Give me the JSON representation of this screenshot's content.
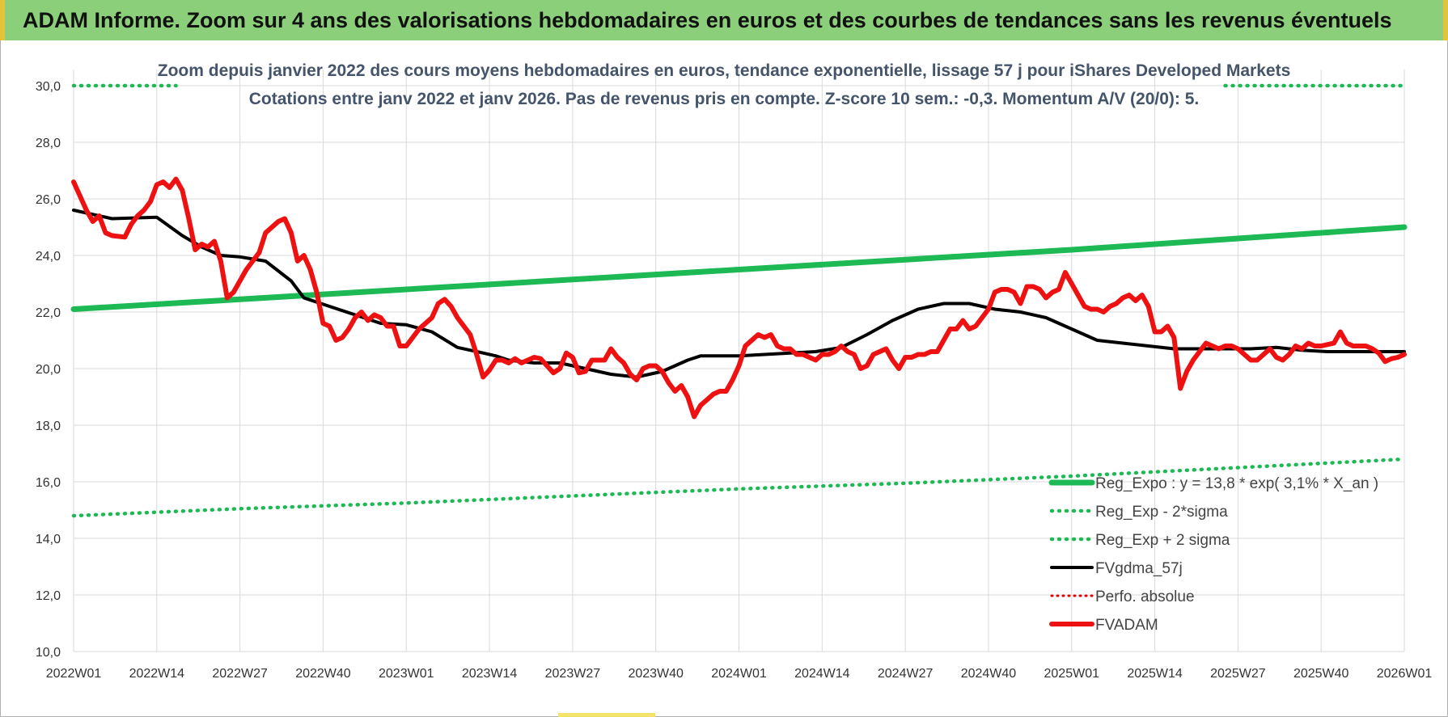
{
  "header": {
    "title": "ADAM Informe. Zoom sur 4 ans des valorisations hebdomadaires en euros et des courbes de tendances sans les revenus éventuels"
  },
  "chart_data": {
    "type": "line",
    "title": "Zoom depuis janvier 2022 des cours moyens hebdomadaires en euros, tendance exponentielle, lissage 57 j pour iShares Developed Markets",
    "subtitle": "Cotations entre janv 2022 et janv 2026. Pas de revenus pris en compte. Z-score 10 sem.: -0,3. Momentum A/V (20/0): 5.",
    "xlabel": "",
    "ylabel": "",
    "ylim": [
      10,
      30
    ],
    "y_ticks": [
      "30,0",
      "28,0",
      "26,0",
      "24,0",
      "22,0",
      "20,0",
      "18,0",
      "16,0",
      "14,0",
      "12,0",
      "10,0"
    ],
    "x_ticks": [
      "2022W01",
      "2022W14",
      "2022W27",
      "2022W40",
      "2023W01",
      "2023W14",
      "2023W27",
      "2023W40",
      "2024W01",
      "2024W14",
      "2024W27",
      "2024W40",
      "2025W01",
      "2025W14",
      "2025W27",
      "2025W40",
      "2026W01"
    ],
    "x_range_weeks": [
      0,
      208
    ],
    "grid": true,
    "legend_position": "bottom-right",
    "colors": {
      "reg_expo": "#1db954",
      "sigma": "#1db954",
      "fvgdma": "#000000",
      "perfo": "#e00000",
      "fvadam": "#ee1111",
      "grid": "#d9d9d9",
      "title_text": "#44546a"
    },
    "series": [
      {
        "name": "Reg_Expo : y = 13,8 * exp( 3,1% *  X_an )",
        "style": "solid-thick",
        "x": [
          0,
          26,
          52,
          78,
          104,
          130,
          156,
          182,
          208
        ],
        "y": [
          22.1,
          22.45,
          22.8,
          23.15,
          23.5,
          23.85,
          24.2,
          24.6,
          25.0
        ]
      },
      {
        "name": "Reg_Exp - 2*sigma",
        "style": "dotted",
        "x": [
          0,
          26,
          52,
          78,
          104,
          130,
          156,
          182,
          208
        ],
        "y": [
          14.8,
          15.05,
          15.25,
          15.5,
          15.75,
          15.95,
          16.2,
          16.5,
          16.8
        ]
      },
      {
        "name": "Reg_Exp + 2 sigma",
        "style": "dotted",
        "x": [
          0,
          16,
          180,
          208
        ],
        "y": [
          30.0,
          30.0,
          30.0,
          30.0
        ]
      },
      {
        "name": "FVgdma_57j",
        "style": "solid",
        "x": [
          0,
          6,
          13,
          17,
          20,
          23,
          26,
          30,
          34,
          36,
          40,
          44,
          48,
          52,
          56,
          60,
          64,
          66,
          68,
          72,
          76,
          80,
          84,
          88,
          92,
          96,
          98,
          100,
          104,
          108,
          112,
          116,
          120,
          124,
          128,
          132,
          136,
          140,
          144,
          148,
          152,
          156,
          160,
          164,
          168,
          172,
          176,
          180,
          184,
          188,
          192,
          196,
          200,
          204,
          208
        ],
        "y": [
          25.6,
          25.3,
          25.35,
          24.7,
          24.3,
          24.0,
          23.95,
          23.8,
          23.1,
          22.5,
          22.2,
          21.9,
          21.6,
          21.55,
          21.3,
          20.75,
          20.55,
          20.45,
          20.3,
          20.2,
          20.2,
          20.0,
          19.8,
          19.7,
          19.9,
          20.3,
          20.45,
          20.45,
          20.45,
          20.5,
          20.55,
          20.6,
          20.75,
          21.2,
          21.7,
          22.1,
          22.3,
          22.3,
          22.1,
          22.0,
          21.8,
          21.4,
          21.0,
          20.9,
          20.8,
          20.7,
          20.7,
          20.7,
          20.7,
          20.75,
          20.65,
          20.6,
          20.6,
          20.6,
          20.6
        ]
      },
      {
        "name": "Perfo. absolue",
        "style": "dotted",
        "x": [],
        "y": []
      },
      {
        "name": "FVADAM",
        "style": "solid-thick",
        "x": [
          0,
          2,
          3,
          4,
          5,
          6,
          8,
          9,
          10,
          11,
          12,
          12.5,
          13,
          14,
          15,
          16,
          17,
          18,
          19,
          20,
          21,
          22,
          23,
          24,
          25,
          26,
          27,
          28,
          29,
          30,
          31,
          32,
          33,
          34,
          35,
          36,
          37,
          38,
          39,
          40,
          41,
          42,
          43,
          44,
          45,
          46,
          47,
          48,
          49,
          50,
          51,
          52,
          53,
          54,
          55,
          56,
          57,
          58,
          59,
          60,
          61,
          62,
          63,
          64,
          65,
          66,
          67,
          68,
          69,
          70,
          71,
          72,
          73,
          74,
          75,
          76,
          77,
          78,
          79,
          80,
          81,
          82,
          83,
          84,
          85,
          86,
          87,
          88,
          89,
          90,
          91,
          92,
          93,
          94,
          95,
          96,
          97,
          98,
          99,
          100,
          101,
          102,
          103,
          104,
          105,
          106,
          107,
          108,
          109,
          110,
          111,
          112,
          113,
          114,
          115,
          116,
          117,
          118,
          119,
          120,
          121,
          122,
          123,
          124,
          125,
          126,
          127,
          128,
          129,
          130,
          131,
          132,
          133,
          134,
          135,
          136,
          137,
          138,
          139,
          140,
          141,
          142,
          143,
          144,
          145,
          146,
          147,
          148,
          149,
          150,
          151,
          152,
          153,
          154,
          155,
          156,
          157,
          158,
          159,
          160,
          161,
          162,
          163,
          164,
          165,
          166,
          167,
          168,
          169,
          170,
          171,
          172,
          173,
          174,
          175,
          176,
          177,
          178,
          179,
          180,
          181,
          182,
          183,
          184,
          185,
          186,
          187,
          188,
          189,
          190,
          191,
          192,
          193,
          194,
          195,
          196,
          197,
          198,
          199,
          200,
          201,
          202,
          203,
          204,
          205,
          206,
          207,
          208
        ],
        "y": [
          26.6,
          25.6,
          25.2,
          25.4,
          24.8,
          24.7,
          24.65,
          25.1,
          25.4,
          25.6,
          25.9,
          26.2,
          26.5,
          26.6,
          26.4,
          26.7,
          26.3,
          25.3,
          24.2,
          24.4,
          24.3,
          24.5,
          23.8,
          22.5,
          22.7,
          23.1,
          23.5,
          23.8,
          24.1,
          24.8,
          25.0,
          25.2,
          25.3,
          24.8,
          23.8,
          24.0,
          23.5,
          22.7,
          21.6,
          21.5,
          21.0,
          21.1,
          21.4,
          21.8,
          22.0,
          21.7,
          21.9,
          21.8,
          21.5,
          21.5,
          20.8,
          20.8,
          21.1,
          21.4,
          21.6,
          21.8,
          22.3,
          22.45,
          22.2,
          21.8,
          21.5,
          21.2,
          20.5,
          19.7,
          19.95,
          20.3,
          20.3,
          20.2,
          20.35,
          20.2,
          20.3,
          20.4,
          20.35,
          20.1,
          19.85,
          20.0,
          20.55,
          20.4,
          19.85,
          19.9,
          20.3,
          20.3,
          20.3,
          20.7,
          20.4,
          20.2,
          19.8,
          19.6,
          20.0,
          20.1,
          20.1,
          19.9,
          19.5,
          19.2,
          19.4,
          19.0,
          18.3,
          18.7,
          18.9,
          19.1,
          19.2,
          19.2,
          19.6,
          20.1,
          20.8,
          21.0,
          21.2,
          21.1,
          21.2,
          20.8,
          20.7,
          20.7,
          20.5,
          20.5,
          20.4,
          20.3,
          20.5,
          20.5,
          20.6,
          20.8,
          20.6,
          20.5,
          20.0,
          20.1,
          20.5,
          20.6,
          20.7,
          20.3,
          20.0,
          20.4,
          20.4,
          20.5,
          20.5,
          20.6,
          20.6,
          21.0,
          21.4,
          21.4,
          21.7,
          21.4,
          21.5,
          21.8,
          22.1,
          22.7,
          22.8,
          22.8,
          22.7,
          22.3,
          22.9,
          22.9,
          22.8,
          22.5,
          22.7,
          22.8,
          23.4,
          23.0,
          22.6,
          22.2,
          22.1,
          22.1,
          22.0,
          22.2,
          22.3,
          22.5,
          22.6,
          22.4,
          22.6,
          22.2,
          21.3,
          21.3,
          21.5,
          21.1,
          19.3,
          19.9,
          20.3,
          20.6,
          20.9,
          20.8,
          20.7,
          20.8,
          20.8,
          20.7,
          20.5,
          20.3,
          20.3,
          20.5,
          20.7,
          20.4,
          20.3,
          20.5,
          20.8,
          20.7,
          20.9,
          20.8,
          20.8,
          20.85,
          20.9,
          21.3,
          20.9,
          20.8,
          20.8,
          20.8,
          20.7,
          20.55,
          20.25,
          20.35,
          20.4,
          20.5
        ]
      }
    ]
  }
}
